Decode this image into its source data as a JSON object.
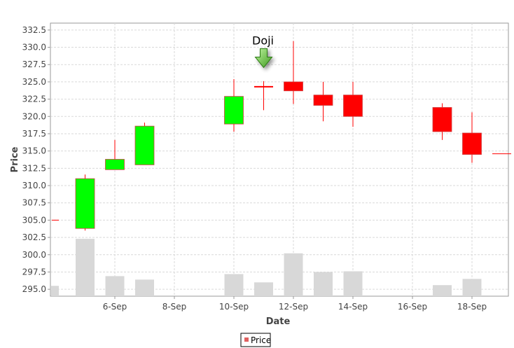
{
  "chart_data": {
    "type": "candlestick",
    "title": "",
    "xlabel": "Date",
    "ylabel": "Price",
    "ylim": [
      294,
      333.5
    ],
    "xlim": [
      "2016-09-04",
      "2016-09-19"
    ],
    "y_ticks": [
      "295.0",
      "297.5",
      "300.0",
      "302.5",
      "305.0",
      "307.5",
      "310.0",
      "312.5",
      "315.0",
      "317.5",
      "320.0",
      "322.5",
      "325.0",
      "327.5",
      "330.0",
      "332.5"
    ],
    "x_ticks": [
      {
        "date": "2016-09-06",
        "label": "6-Sep"
      },
      {
        "date": "2016-09-08",
        "label": "8-Sep"
      },
      {
        "date": "2016-09-10",
        "label": "10-Sep"
      },
      {
        "date": "2016-09-12",
        "label": "12-Sep"
      },
      {
        "date": "2016-09-14",
        "label": "14-Sep"
      },
      {
        "date": "2016-09-16",
        "label": "16-Sep"
      },
      {
        "date": "2016-09-18",
        "label": "18-Sep"
      }
    ],
    "grid": true,
    "legend": {
      "position": "bottom-center",
      "entries": [
        {
          "label": "Price",
          "color": "#e06060"
        }
      ]
    },
    "colors": {
      "up": "#00ff00",
      "down": "#ff0000",
      "wick": "#ff0000",
      "volume": "#d8d8d8",
      "grid": "#d9d9d9"
    },
    "candles": [
      {
        "date": "2016-09-04",
        "open": 305.0,
        "high": 305.0,
        "low": 305.0,
        "close": 305.0
      },
      {
        "date": "2016-09-05",
        "open": 303.8,
        "high": 311.6,
        "low": 303.5,
        "close": 311.0
      },
      {
        "date": "2016-09-06",
        "open": 312.3,
        "high": 316.6,
        "low": 312.3,
        "close": 313.8
      },
      {
        "date": "2016-09-07",
        "open": 313.0,
        "high": 319.1,
        "low": 313.0,
        "close": 318.6
      },
      {
        "date": "2016-09-10",
        "open": 318.9,
        "high": 325.4,
        "low": 317.8,
        "close": 322.9
      },
      {
        "date": "2016-09-11",
        "open": 324.3,
        "high": 325.1,
        "low": 320.9,
        "close": 324.3
      },
      {
        "date": "2016-09-12",
        "open": 325.0,
        "high": 330.9,
        "low": 321.8,
        "close": 323.7
      },
      {
        "date": "2016-09-13",
        "open": 323.1,
        "high": 325.0,
        "low": 319.3,
        "close": 321.6
      },
      {
        "date": "2016-09-14",
        "open": 323.1,
        "high": 325.0,
        "low": 318.5,
        "close": 320.0
      },
      {
        "date": "2016-09-17",
        "open": 321.3,
        "high": 321.9,
        "low": 316.6,
        "close": 317.8
      },
      {
        "date": "2016-09-18",
        "open": 317.6,
        "high": 320.6,
        "low": 313.3,
        "close": 314.5
      },
      {
        "date": "2016-09-19",
        "open": 314.6,
        "high": 314.6,
        "low": 314.6,
        "close": 314.6
      }
    ],
    "volume_bars": [
      {
        "date": "2016-09-04",
        "value": 295.5
      },
      {
        "date": "2016-09-05",
        "value": 302.3
      },
      {
        "date": "2016-09-06",
        "value": 296.9
      },
      {
        "date": "2016-09-07",
        "value": 296.4
      },
      {
        "date": "2016-09-10",
        "value": 297.2
      },
      {
        "date": "2016-09-11",
        "value": 296.0
      },
      {
        "date": "2016-09-12",
        "value": 300.2
      },
      {
        "date": "2016-09-13",
        "value": 297.5
      },
      {
        "date": "2016-09-14",
        "value": 297.6
      },
      {
        "date": "2016-09-17",
        "value": 295.6
      },
      {
        "date": "2016-09-18",
        "value": 296.5
      }
    ],
    "annotations": [
      {
        "text": "Doji",
        "date": "2016-09-11",
        "value": 329.5,
        "icon": "down-arrow-icon"
      }
    ]
  }
}
